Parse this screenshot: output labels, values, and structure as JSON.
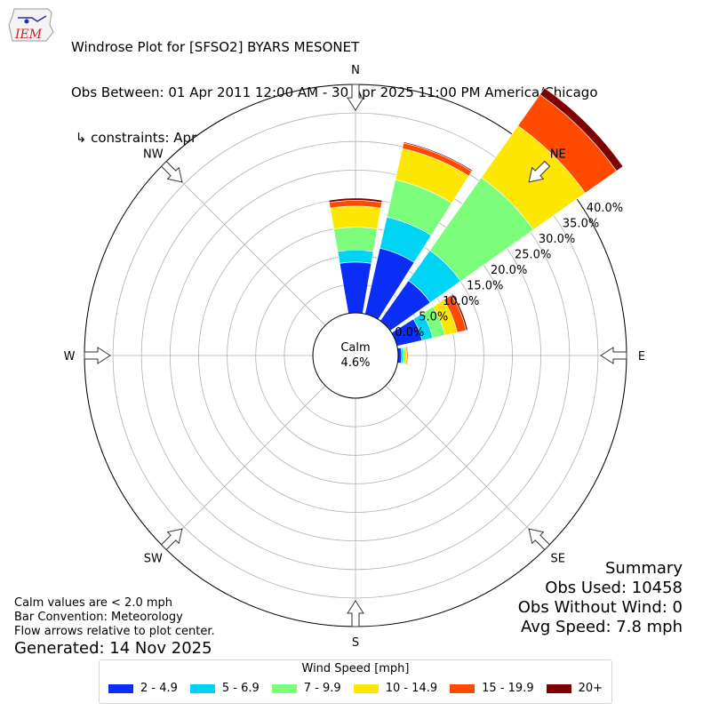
{
  "header": {
    "logo_text": "IEM",
    "title_line1": "Windrose Plot for [SFSO2] BYARS MESONET",
    "title_line2": "Obs Between: 01 Apr 2011 12:00 AM - 30 Apr 2025 11:00 PM America/Chicago",
    "title_line3": " ↳ constraints: Apr"
  },
  "chart_data": {
    "type": "windrose",
    "directions": [
      "N",
      "NE",
      "E",
      "SE",
      "S",
      "SW",
      "W",
      "NW"
    ],
    "radial_ticks": [
      "0.0%",
      "5.0%",
      "10.0%",
      "15.0%",
      "20.0%",
      "25.0%",
      "30.0%",
      "35.0%",
      "40.0%"
    ],
    "radial_range": [
      0,
      40
    ],
    "grid": true,
    "calm": {
      "label": "Calm",
      "value": "4.6%"
    },
    "speed_bins": [
      "2 - 4.9",
      "5 - 6.9",
      "7 - 9.9",
      "10 - 14.9",
      "15 - 19.9",
      "20+"
    ],
    "colors": [
      "#0a2ef5",
      "#00d4f4",
      "#7bfc7b",
      "#fde600",
      "#ff4a00",
      "#7f0000"
    ],
    "sectors_deg": [
      0,
      22.5,
      45,
      67.5,
      90,
      112.5,
      135,
      157.5,
      180,
      202.5,
      225,
      247.5,
      270,
      292.5,
      315,
      337.5
    ],
    "sector_values_pct": [
      [
        8.9,
        2.1,
        4.0,
        3.7,
        1.0,
        0.4
      ],
      [
        11.8,
        5.6,
        6.7,
        5.6,
        1.0,
        0.2
      ],
      [
        8.6,
        6.5,
        15.6,
        11.1,
        6.7,
        1.4
      ],
      [
        4.5,
        1.9,
        2.2,
        2.2,
        1.6,
        0.3
      ],
      [
        0.6,
        0.3,
        0.3,
        0.3,
        0.2,
        0.1
      ],
      [
        0,
        0,
        0,
        0,
        0,
        0
      ],
      [
        0,
        0,
        0,
        0,
        0,
        0
      ],
      [
        0,
        0,
        0,
        0,
        0,
        0
      ],
      [
        0,
        0,
        0,
        0,
        0,
        0
      ],
      [
        0,
        0,
        0,
        0,
        0,
        0
      ],
      [
        0,
        0,
        0,
        0,
        0,
        0
      ],
      [
        0,
        0,
        0,
        0,
        0,
        0
      ],
      [
        0,
        0,
        0,
        0,
        0,
        0
      ],
      [
        0,
        0,
        0,
        0,
        0,
        0
      ],
      [
        0,
        0,
        0,
        0,
        0,
        0
      ],
      [
        0,
        0,
        0,
        0,
        0,
        0
      ]
    ],
    "legend_title": "Wind Speed [mph]",
    "legend_placement": "bottom"
  },
  "summary": {
    "title": "Summary",
    "obs_used": "Obs Used: 10458",
    "obs_without_wind": "Obs Without Wind: 0",
    "avg_speed": "Avg Speed: 7.8 mph"
  },
  "notes": {
    "line1": "Calm values are < 2.0 mph",
    "line2": "Bar Convention: Meteorology",
    "line3": "Flow arrows relative to plot center."
  },
  "generated": "Generated: 14 Nov 2025"
}
